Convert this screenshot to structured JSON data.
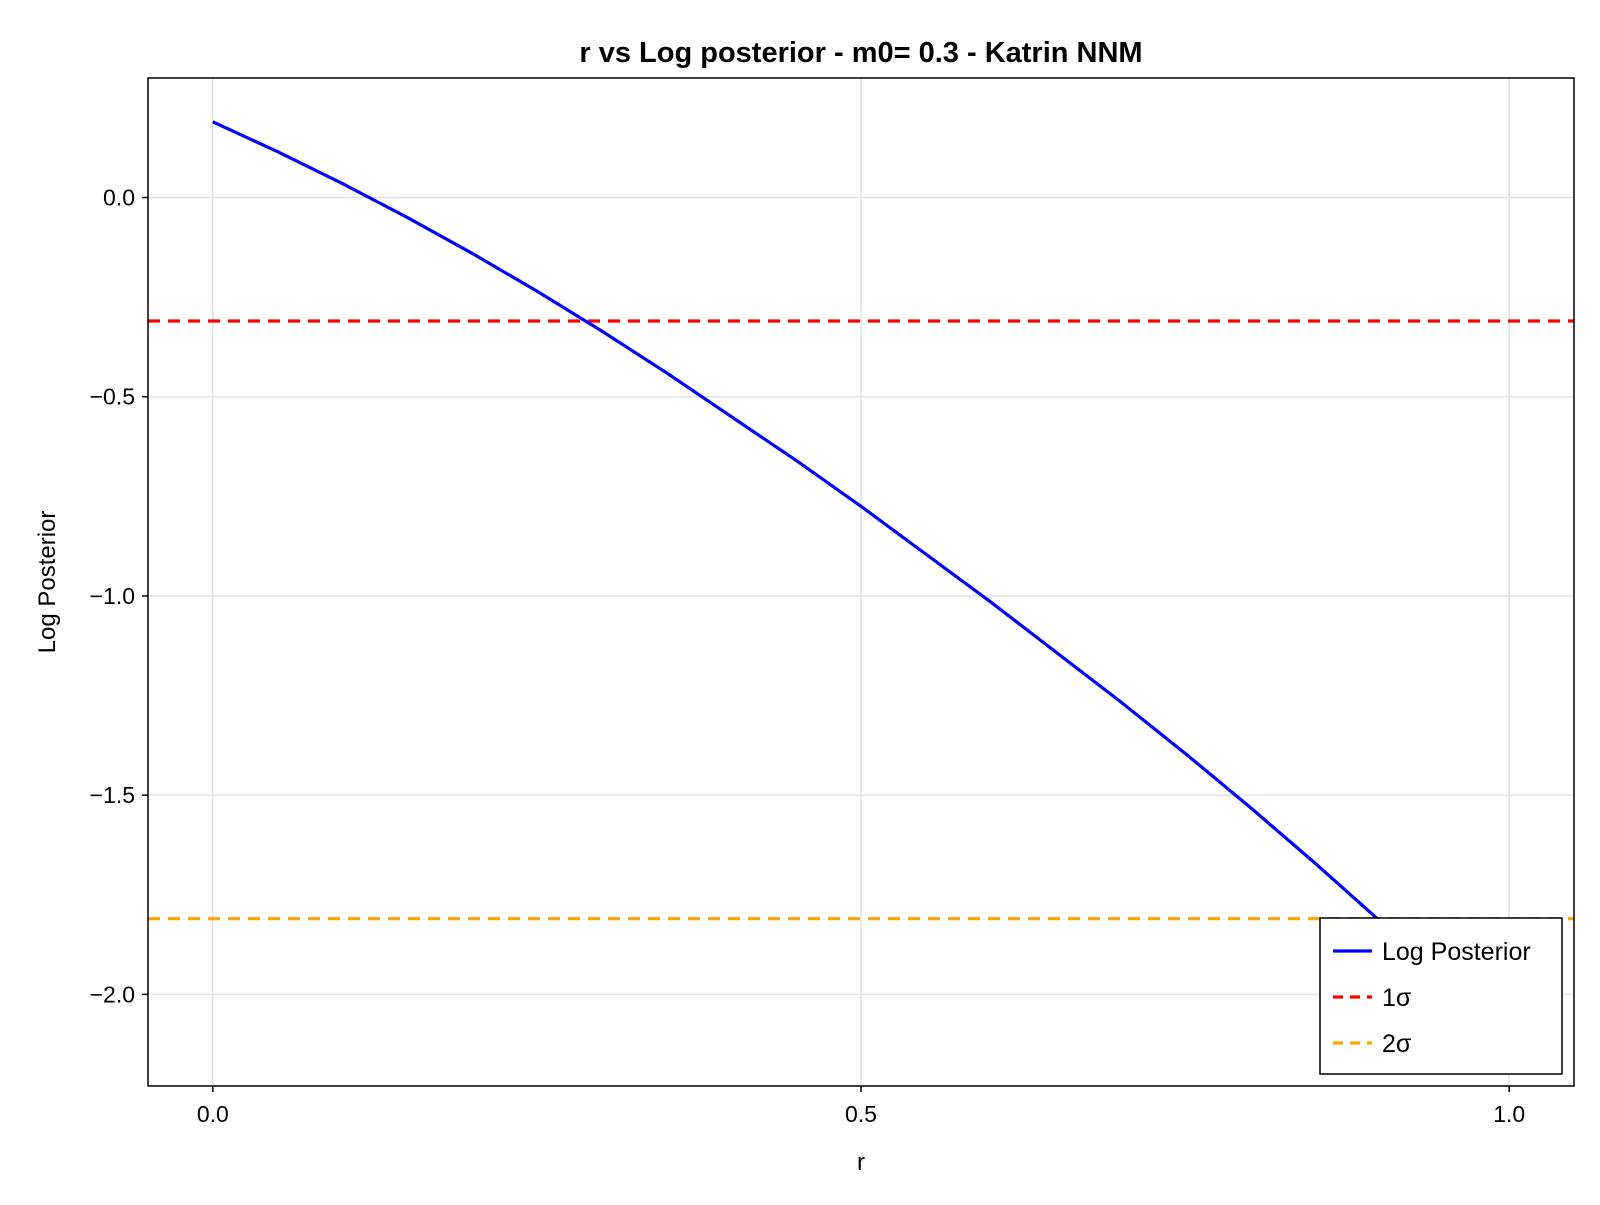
{
  "chart_data": {
    "type": "line",
    "title": "r vs Log posterior - m0= 0.3 - Katrin NNM",
    "xlabel": "r",
    "ylabel": "Log Posterior",
    "xlim": [
      -0.05,
      1.05
    ],
    "ylim": [
      -2.23,
      0.3
    ],
    "grid": true,
    "legend_position": "bottom-right",
    "x_ticks": [
      0.0,
      0.5,
      1.0
    ],
    "x_tick_labels": [
      "0.0",
      "0.5",
      "1.0"
    ],
    "y_ticks": [
      0.0,
      -0.5,
      -1.0,
      -1.5,
      -2.0
    ],
    "y_tick_labels": [
      "0.0",
      "−0.5",
      "−1.0",
      "−1.5",
      "−2.0"
    ],
    "series": [
      {
        "name": "Log Posterior",
        "color": "#0000ff",
        "style": "solid",
        "x": [
          0.0,
          0.05,
          0.1,
          0.15,
          0.2,
          0.25,
          0.3,
          0.35,
          0.4,
          0.45,
          0.5,
          0.55,
          0.6,
          0.65,
          0.7,
          0.75,
          0.8,
          0.85,
          0.9
        ],
        "y": [
          0.19,
          0.115,
          0.035,
          -0.05,
          -0.14,
          -0.235,
          -0.335,
          -0.44,
          -0.55,
          -0.66,
          -0.775,
          -0.895,
          -1.015,
          -1.14,
          -1.265,
          -1.395,
          -1.53,
          -1.67,
          -1.815
        ]
      }
    ],
    "hlines": [
      {
        "name": "1σ",
        "y": -0.31,
        "color": "#ff0000",
        "style": "dashed"
      },
      {
        "name": "2σ",
        "y": -1.81,
        "color": "#ffa500",
        "style": "dashed"
      }
    ]
  }
}
